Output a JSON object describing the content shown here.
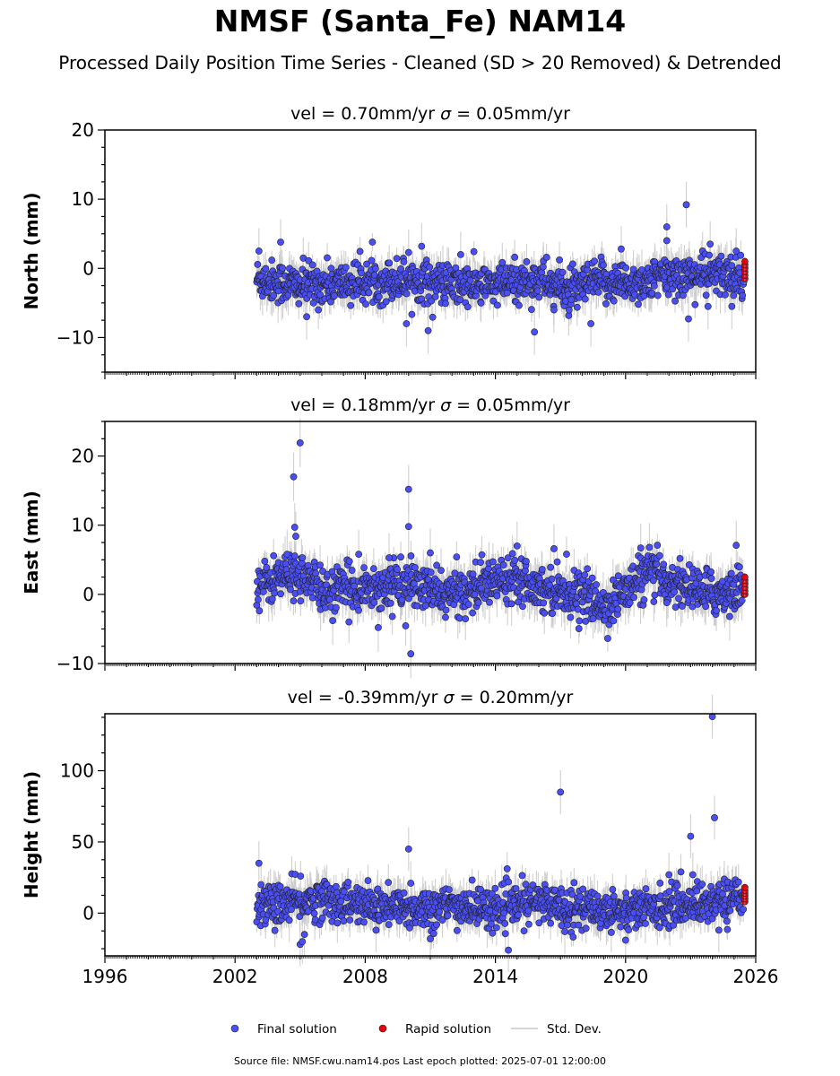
{
  "title": "NMSF (Santa_Fe) NAM14",
  "subtitle": "Processed Daily Position Time Series - Cleaned (SD > 20 Removed) & Detrended",
  "footer": "Source file: NMSF.cwu.nam14.pos  Last epoch plotted: 2025-07-01 12:00:00",
  "colors": {
    "final": "#4a4ef5",
    "rapid": "#e8000b",
    "std": "#c8c8c8",
    "edge": "#222222"
  },
  "legend": {
    "items": [
      {
        "key": "final",
        "label": "Final solution"
      },
      {
        "key": "rapid",
        "label": "Rapid solution"
      },
      {
        "key": "std",
        "label": "Std. Dev."
      }
    ]
  },
  "chart_data": [
    {
      "type": "scatter",
      "panel": "north",
      "title_vel": "vel = 0.70mm/yr",
      "title_sigma": "= 0.05mm/yr",
      "ylabel": "North (mm)",
      "xlim": [
        1996,
        2026
      ],
      "ylim": [
        -15,
        20
      ],
      "yticks": [
        -10,
        0,
        10,
        20
      ],
      "xticks": [
        1996,
        2002,
        2008,
        2014,
        2020,
        2026
      ],
      "final_solution": {
        "range": [
          2003.0,
          2025.45
        ],
        "baseline": [
          [
            2003,
            -1.5
          ],
          [
            2005,
            -2.5
          ],
          [
            2008,
            -2
          ],
          [
            2010,
            -1.5
          ],
          [
            2012,
            -2.5
          ],
          [
            2014,
            -2.5
          ],
          [
            2016,
            -1.5
          ],
          [
            2017.5,
            -3.5
          ],
          [
            2018.5,
            -2
          ],
          [
            2019.5,
            -2
          ],
          [
            2021,
            -2
          ],
          [
            2022,
            -1
          ],
          [
            2025.4,
            -1
          ]
        ],
        "spread": 1.5,
        "outliers": [
          [
            2003.1,
            2.5
          ],
          [
            2004.1,
            3.8
          ],
          [
            2005.3,
            -7
          ],
          [
            2009.9,
            -8
          ],
          [
            2010,
            2.3
          ],
          [
            2010.6,
            3.2
          ],
          [
            2010.9,
            -9
          ],
          [
            2012.4,
            2
          ],
          [
            2015.8,
            -9.2
          ],
          [
            2016.7,
            -6
          ],
          [
            2017.5,
            -4.5
          ],
          [
            2018.4,
            -8
          ],
          [
            2019.8,
            2.8
          ],
          [
            2021.9,
            6
          ],
          [
            2021.9,
            4
          ],
          [
            2022.8,
            9.2
          ],
          [
            2022.9,
            -7.3
          ],
          [
            2023.8,
            -5.5
          ],
          [
            2023.9,
            3.5
          ],
          [
            2024.9,
            -5.5
          ],
          [
            2025.1,
            2.5
          ]
        ]
      },
      "rapid_solution": {
        "x": 2025.5,
        "y": [
          -1.5,
          -1,
          -0.5,
          0,
          0.5,
          1
        ]
      }
    },
    {
      "type": "scatter",
      "panel": "east",
      "title_vel": "vel = 0.18mm/yr",
      "title_sigma": "= 0.05mm/yr",
      "ylabel": "East (mm)",
      "xlim": [
        1996,
        2026
      ],
      "ylim": [
        -10,
        25
      ],
      "yticks": [
        -10,
        0,
        10,
        20
      ],
      "xticks": [
        1996,
        2002,
        2008,
        2014,
        2020,
        2026
      ],
      "final_solution": {
        "range": [
          2003.0,
          2025.45
        ],
        "baseline": [
          [
            2003,
            1
          ],
          [
            2004,
            2.5
          ],
          [
            2005,
            3
          ],
          [
            2006,
            0.5
          ],
          [
            2008,
            1
          ],
          [
            2010,
            1.5
          ],
          [
            2011,
            0.5
          ],
          [
            2012,
            0
          ],
          [
            2014,
            2
          ],
          [
            2015,
            3
          ],
          [
            2016,
            1
          ],
          [
            2017,
            0.5
          ],
          [
            2018,
            0
          ],
          [
            2019,
            -2
          ],
          [
            2020,
            0.5
          ],
          [
            2021,
            3
          ],
          [
            2022,
            2
          ],
          [
            2023,
            1
          ],
          [
            2024,
            0
          ],
          [
            2025.4,
            1
          ]
        ],
        "spread": 1.6,
        "outliers": [
          [
            2004.4,
            5.8
          ],
          [
            2004.7,
            17
          ],
          [
            2004.75,
            9.7
          ],
          [
            2004.8,
            8.4
          ],
          [
            2005,
            21.9
          ],
          [
            2006.5,
            -3.8
          ],
          [
            2007.7,
            5.8
          ],
          [
            2008.6,
            -4.8
          ],
          [
            2009.1,
            5.3
          ],
          [
            2010,
            15.2
          ],
          [
            2010,
            9.8
          ],
          [
            2010.1,
            -8.6
          ],
          [
            2011,
            6
          ],
          [
            2015,
            7
          ],
          [
            2016.7,
            6.6
          ],
          [
            2020.7,
            6.7
          ],
          [
            2021.1,
            6.8
          ],
          [
            2021.9,
            -1.2
          ],
          [
            2024.8,
            -3.2
          ],
          [
            2025.1,
            7.1
          ]
        ]
      },
      "rapid_solution": {
        "x": 2025.5,
        "y": [
          0,
          0.5,
          1,
          1.5,
          2,
          2.5
        ]
      }
    },
    {
      "type": "scatter",
      "panel": "height",
      "title_vel": "vel = -0.39mm/yr",
      "title_sigma": "= 0.20mm/yr",
      "ylabel": "Height (mm)",
      "xlim": [
        1996,
        2026
      ],
      "ylim": [
        -30,
        140
      ],
      "yticks": [
        0,
        50,
        100
      ],
      "xticks": [
        1996,
        2002,
        2008,
        2014,
        2020,
        2026
      ],
      "final_solution": {
        "range": [
          2003.0,
          2025.45
        ],
        "baseline": [
          [
            2003,
            5
          ],
          [
            2006,
            10
          ],
          [
            2008,
            5
          ],
          [
            2010,
            3
          ],
          [
            2012,
            5
          ],
          [
            2014,
            3
          ],
          [
            2016,
            8
          ],
          [
            2018,
            3
          ],
          [
            2020,
            2
          ],
          [
            2022,
            5
          ],
          [
            2024,
            8
          ],
          [
            2025.4,
            12
          ]
        ],
        "spread": 7,
        "outliers": [
          [
            2003.1,
            35
          ],
          [
            2003.2,
            20
          ],
          [
            2004.5,
            -5
          ],
          [
            2005,
            -22
          ],
          [
            2005.1,
            -20
          ],
          [
            2005.2,
            -15
          ],
          [
            2008.5,
            -12
          ],
          [
            2010,
            45
          ],
          [
            2010.1,
            21
          ],
          [
            2011,
            -18
          ],
          [
            2014.6,
            -26
          ],
          [
            2017,
            85
          ],
          [
            2017.2,
            -13
          ],
          [
            2020,
            -19
          ],
          [
            2022,
            27
          ],
          [
            2023,
            54
          ],
          [
            2023.1,
            27
          ],
          [
            2024,
            138
          ],
          [
            2024.1,
            67
          ],
          [
            2024.3,
            -12
          ]
        ]
      },
      "rapid_solution": {
        "x": 2025.5,
        "y": [
          8,
          10,
          12,
          14,
          16,
          18
        ]
      }
    }
  ]
}
